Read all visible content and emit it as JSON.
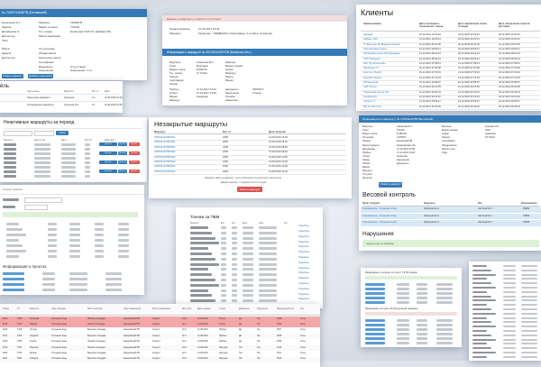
{
  "collage": {
    "card1": {
      "header": "№ 7000Т/1606/ПВ (Беловский)",
      "left_labels": [
        "Начальник Н.Т.",
        "Задача",
        "Дата/время Н.",
        "Диспетчер",
        "ТМ 2"
      ],
      "mid_labels": [
        "Машина",
        "Марка техники",
        "Гос. номер",
        "Масса перевозки"
      ],
      "mid_values": [
        "1250ЦТМ",
        "ТОНАР",
        "Нефтяная 18-Б УЛ. Дубовая 35к"
      ],
      "lower_labels": [
        "ПАЗ А",
        "Задача",
        "Диспетчер"
      ],
      "lower_mid": [
        "Тр.груз воды",
        "Общая масса",
        "Рассчитать массу",
        "Сертификат"
      ],
      "doc_labels": [
        "Документы",
        "Нарушения"
      ],
      "doc_values": [
        "Отсутствуют",
        "Нарушения: 1 шт."
      ],
      "btn1": "Создать маршрут",
      "btn2": "Добавить нарушение"
    },
    "card2": {
      "alert": "Данные по маршруту в работе отсутствуют",
      "rows": [
        [
          "Подача машины",
          "27.01.2017 16:40"
        ],
        [
          "Маршрут",
          "Кемерово - ПАВДИНСК, Нефтезавод, 2-я обвод. Кемерово"
        ]
      ],
      "header": "Информация о маршруте № 201705/1405Т/ПВ (Кемерово Бел.)",
      "labels_a": [
        "Водитель",
        "Тягач",
        "Марка тягача",
        "Гос. номер",
        "Прицеп",
        "Сертификат",
        "Объём"
      ],
      "labels_b": [
        "Машина",
        "Марка техники",
        "Номер",
        "Маршрут",
        "Масса",
        "Время"
      ],
      "labels_c": [
        "Прибыл",
        "Отбыл",
        "Время",
        "Маршрут",
        "Документы",
        "Нарушения",
        "Пломбы",
        "Навигация"
      ],
      "values_c": [
        "27.01.2017 10:22",
        "27.01.2017 15:20",
        "Кемерово",
        "ЛЮТИК 5",
        "Тоннаж"
      ],
      "vals_right": [
        "Смирнова В.А.",
        "Мерседес",
        "Е 890 КА",
        "17 ТОНН"
      ]
    },
    "card3": {
      "title": "Клиенты",
      "headers": [
        "Наименование",
        "Дата последнего оплаченного заказа",
        "Дата обновления типов позиций",
        "Дата обновления пунктов доставки"
      ],
      "rows": [
        [
          "Нарзаев",
          "07.12.2021 12:20:32",
          "03.12.2020 12:20:32",
          "03.12.2019 12:20:32"
        ],
        [
          "Нифель ТД С",
          "01.12.2021 10:40:21",
          "02.12.2020 10:40:21",
          "01.12.2019 10:40:21"
        ],
        [
          "ТК Ведущие АС Ведущие Ломкий",
          "01.12.2021 09:31:05",
          "20.12.2020 09:31:05",
          "01.12.2019 09:31:05"
        ],
        [
          "ООО Деловые Курсы",
          "01.12.2021 09:50:41",
          "20.12.2020 09:50:41",
          "01.12.2019 09:50:41"
        ],
        [
          "ОЭ Коммерческий Обслуживание",
          "01.12.2021 08:24:10",
          "20.12.2020 08:24:10",
          "01.12.2019 08:24:10"
        ],
        [
          "ООО Терминал",
          "01.12.2021 08:04:44",
          "20.12.2020 08:04:44",
          "01.12.2019 08:04:44"
        ],
        [
          "ЗАО ТД «Продснаб»",
          "01.12.2021 07:58:51",
          "21.12.2020 07:58:51",
          "01.12.2019 07:58:51"
        ],
        [
          "Эльдорадо ТТ",
          "01.12.2021 07:44:08",
          "21.12.2020 07:44:08",
          "01.12.2019 07:44:08"
        ],
        [
          "Кристалл Трейд",
          "01.12.2021 07:29:16",
          "21.12.2020 07:29:16",
          "02.12.2019 07:29:16"
        ],
        [
          "Арсенал Сибирь",
          "01.12.2021 07:12:33",
          "21.12.2020 07:12:33",
          "02.12.2019 07:12:33"
        ],
        [
          "ИП Каргатова",
          "01.12.2021 06:58:07",
          "21.12.2020 06:58:07",
          "02.12.2019 06:58:07"
        ],
        [
          "СМТ Регион",
          "01.12.2021 06:41:55",
          "21.12.2020 06:41:55",
          "02.12.2019 06:41:55"
        ],
        [
          "Подольский Сектор ТД",
          "01.12.2021 06:30:19",
          "21.12.2020 06:30:19",
          "02.12.2019 06:30:19"
        ],
        [
          "Профсервис",
          "01.12.2021 06:14:02",
          "22.12.2020 06:14:02",
          "02.12.2019 06:14:02"
        ],
        [
          "Сибирь ТТ",
          "01.12.2021 05:59:47",
          "22.12.2020 05:59:47",
          "02.12.2019 05:59:47"
        ],
        [
          "Восток Логистик",
          "01.12.2021 05:43:30",
          "22.12.2020 05:43:30",
          "03.12.2019 05:43:30"
        ]
      ]
    },
    "card4": {
      "title": "ёль",
      "headers": [
        "Нарушение",
        "Водитель",
        "Вес нт",
        "Дата"
      ],
      "rows": [
        [
          "Нарушение маршрута",
          "Хрипунов",
          "0.1",
          "10.08.2018 10:28"
        ],
        [
          "Остановка вне маршрута",
          "Хрипунов Н.А.",
          "0.1",
          "10.08.2018 14:35"
        ]
      ]
    },
    "card5": {
      "title": "Незакрытые маршруты",
      "headers": [
        "Маршрут",
        "Вес нт",
        "Дата загрузки"
      ],
      "rows": [
        [
          "1505/1114/ПВ/1602",
          "2200",
          "12.09.2019 14:30"
        ],
        [
          "1505/1114/ПВ/1602",
          "2200",
          "12.09.2019 15:10"
        ],
        [
          "1505/1114/ПВ/1602",
          "2200",
          "13.09.2019 08:20"
        ],
        [
          "1505/1114/ПВ/1602",
          "2200",
          "13.09.2019 09:40"
        ],
        [
          "1505/1114/ПВ/1602",
          "2200",
          "13.09.2019 11:05"
        ],
        [
          "1505/1114/ПВ/1602",
          "2200",
          "13.09.2019 12:45"
        ],
        [
          "1505/1114/ПВ/1602",
          "2200",
          "13.09.2019 14:00"
        ],
        [
          "1505/1114/ПВ/1602",
          "2200",
          "13.09.2019 15:30"
        ]
      ],
      "note1": "Нажмите закрыть маршрут после окончания погрузки всех маршрутов",
      "note2": "Дадим маршрут и закроем после отгрузки",
      "button": "Закрыть маршрут"
    },
    "card6": {
      "title": "Неактивные маршруты за период",
      "button_search": "Поиск",
      "headers": [
        "Маршрут",
        "Диспетчер",
        "Дата",
        "Кол-во",
        "Действия"
      ],
      "btn_blue": "Детали",
      "btn_red": "Удалить"
    },
    "card7": {
      "header": "Информация по маршруту № 1410/1114/ПВ (Беловский)",
      "labels": [
        "Водитель",
        "Тягач",
        "Марка тягача",
        "Гос.номер",
        "Прицеп",
        "Марка прицепа",
        "Дата/время",
        "Прибыл",
        "Отбыл",
        "Номер",
        "Объём",
        "Время",
        "Маршрут",
        "Отгрузил",
        "Загрузил"
      ],
      "mid_labels": [
        "Машина",
        "Марка техники",
        "Номер",
        "Прицеп",
        "Сертификат",
        "Общая масса",
        "Масса груза",
        "Тара"
      ],
      "values": [
        "Смирнова Е.Т.",
        "ТОНАР",
        "Е 980 КВ",
        "LX25001",
        "Беловский ПВ",
        "Кемеровская обл.",
        "27.12.2019 12:55",
        "27.12.2019 14:20",
        "Кемерово",
        "Нарушения",
        "Документы"
      ],
      "right_vals": [
        "Киреева И.Н.",
        "2015",
        "Кемерово",
        "25 ТОНН"
      ],
      "btn": "Обновить маршрут",
      "weight_title": "Весовой контроль",
      "weight_headers": [
        "Пункт загрузки",
        "Водитель",
        "Вес",
        "Взвешивание"
      ],
      "weight_rows": [
        [
          "Тарлаганское - Угольный склад",
          "Хрипунов Н.А.",
          "Частный 23 т.",
          "25000"
        ],
        [
          "Тарлаганское - Угольный склад",
          "Хрипунов Н.А.",
          "Частный 21 т.",
          "21500"
        ],
        [
          "Тарлаганское - Угольный склад",
          "Хрипунов Н.А.",
          "Частный 22 т.",
          "21500"
        ]
      ],
      "violations_title": "Нарушения",
      "violations_empty": "Нарушения не найдены"
    },
    "card8": {
      "title": "Тоннаж за ПВМ",
      "headers": [
        "Маршрут",
        "Вес",
        "Кол.",
        "Дата",
        "Зона",
        "Тип"
      ],
      "link_text": "Подробнее"
    },
    "card9": {
      "title": "Список пунктов",
      "section": "Информация о пунктах"
    },
    "card10": {
      "headers": [
        "Номер",
        "ТС",
        "Водитель",
        "Пункт загрузки",
        "Место загрузки",
        "Пункт назначения",
        "Место назначения",
        "Вес груза",
        "Дата и время",
        "Статус",
        "Документы",
        "Нарушения",
        "Маршрутный лист",
        "Тип"
      ],
      "rows": [
        [
          "2014",
          "Т145",
          "Хрипунов",
          "Угольный склад",
          "Нижняя площадка",
          "Кемеровский ПВ",
          "Склад 2",
          "24.8",
          "12.08.2019",
          "В пути",
          "Да",
          "Нет",
          "1505",
          "Уголь"
        ],
        [
          "2015",
          "Т212",
          "Иванов",
          "Угольный склад",
          "Нижняя площадка",
          "Кемеровский ПВ",
          "Склад 2",
          "22.1",
          "12.08.2019",
          "В пути",
          "Да",
          "Нет",
          "1506",
          "Уголь"
        ],
        [
          "2016",
          "Т318",
          "Петров",
          "Угольный склад",
          "Верхняя площадка",
          "Кемеровский ПВ",
          "Склад 1",
          "23.4",
          "12.08.2019",
          "Прибыл",
          "Да",
          "Нет",
          "1507",
          "Уголь"
        ],
        [
          "2017",
          "Т402",
          "Сидоров",
          "Угольный склад",
          "Верхняя площадка",
          "Кемеровский ПВ",
          "Склад 1",
          "21.9",
          "12.08.2019",
          "Прибыл",
          "Да",
          "Нет",
          "1508",
          "Уголь"
        ],
        [
          "2018",
          "Т509",
          "Козлов",
          "Угольный склад",
          "Нижняя площадка",
          "Кемеровский ПВ",
          "Склад 3",
          "24.2",
          "13.08.2019",
          "Прибыл",
          "Да",
          "Нет",
          "1509",
          "Уголь"
        ],
        [
          "2019",
          "Т611",
          "Морозов",
          "Угольный склад",
          "Нижняя площадка",
          "Кемеровский ПВ",
          "Склад 3",
          "23.8",
          "13.08.2019",
          "Загрузка",
          "Нет",
          "Нет",
          "1510",
          "Уголь"
        ],
        [
          "2020",
          "Т705",
          "Волков",
          "Угольный склад",
          "Верхняя площадка",
          "Кемеровский ПВ",
          "Склад 2",
          "22.6",
          "13.08.2019",
          "Загрузка",
          "Нет",
          "Нет",
          "1511",
          "Уголь"
        ],
        [
          "2021",
          "Т803",
          "Лебедев",
          "Угольный склад",
          "Верхняя площадка",
          "Кемеровский ПВ",
          "Склад 2",
          "24.0",
          "13.08.2019",
          "Загрузка",
          "Нет",
          "Нет",
          "1512",
          "Уголь"
        ]
      ]
    },
    "card11": {
      "title1": "Информация о погрузке по отчёту Т-8 Поставщик",
      "title2": "Информация по пункту 15 Погрузочный терминал"
    },
    "colors": {
      "blue_header": "#337ab7",
      "red_alert": "#f2dede",
      "red_row": "#f4a6a6",
      "green_alert": "#dff0d8",
      "link": "#337ab7"
    }
  }
}
